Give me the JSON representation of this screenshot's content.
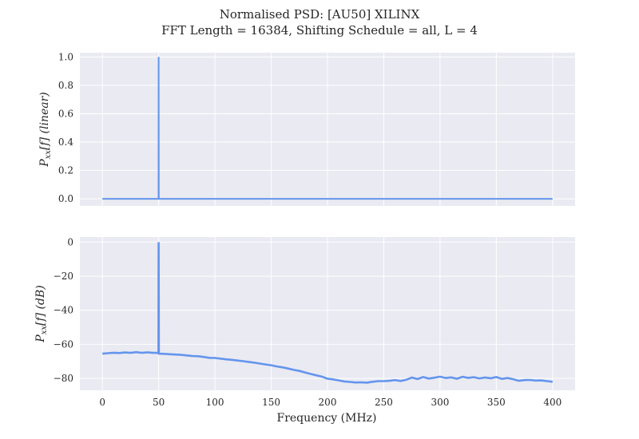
{
  "title_line1": "Normalised PSD: [AU50] XILINX",
  "title_line2": "FFT Length = 16384, Shifting Schedule = all, L = 4",
  "chart_data": [
    {
      "type": "line",
      "panel": "top",
      "ylabel": "P_xx[f] (linear)",
      "ylabel_main": "P",
      "ylabel_sub": "xx",
      "ylabel_rest": "[f] (linear)",
      "xlim": [
        -20,
        420
      ],
      "ylim": [
        -0.05,
        1.03
      ],
      "xticks": [
        0,
        50,
        100,
        150,
        200,
        250,
        300,
        350,
        400
      ],
      "yticks": [
        0.0,
        0.2,
        0.4,
        0.6,
        0.8,
        1.0
      ],
      "ytick_labels": [
        "0.0",
        "0.2",
        "0.4",
        "0.6",
        "0.8",
        "1.0"
      ],
      "series": [
        {
          "color": "#6495ed",
          "x": [
            0,
            49.8,
            49.9,
            50.0,
            50.1,
            50.2,
            400
          ],
          "y": [
            0.0,
            0.0,
            0.0,
            1.0,
            0.0,
            0.0,
            0.0
          ]
        }
      ]
    },
    {
      "type": "line",
      "panel": "bottom",
      "ylabel": "P_xx[f] (dB)",
      "ylabel_main": "P",
      "ylabel_sub": "xx",
      "ylabel_rest": "[f] (dB)",
      "xlabel": "Frequency (MHz)",
      "xlim": [
        -20,
        420
      ],
      "ylim": [
        -87,
        3
      ],
      "xticks": [
        0,
        50,
        100,
        150,
        200,
        250,
        300,
        350,
        400
      ],
      "xtick_labels": [
        "0",
        "50",
        "100",
        "150",
        "200",
        "250",
        "300",
        "350",
        "400"
      ],
      "yticks": [
        0,
        -20,
        -40,
        -60,
        -80
      ],
      "ytick_labels": [
        "0",
        "−20",
        "−40",
        "−60",
        "−80"
      ],
      "series": [
        {
          "color": "#6495ed",
          "x": [
            0,
            5,
            10,
            15,
            20,
            25,
            30,
            35,
            40,
            45,
            49.8,
            50.0,
            50.2,
            55,
            60,
            65,
            70,
            75,
            80,
            85,
            90,
            95,
            100,
            105,
            110,
            115,
            120,
            125,
            130,
            135,
            140,
            145,
            150,
            155,
            160,
            165,
            170,
            175,
            180,
            185,
            190,
            195,
            200,
            205,
            210,
            215,
            220,
            225,
            230,
            235,
            240,
            245,
            250,
            255,
            260,
            265,
            270,
            275,
            280,
            285,
            290,
            295,
            300,
            305,
            310,
            315,
            320,
            325,
            330,
            335,
            340,
            345,
            350,
            355,
            360,
            365,
            370,
            375,
            380,
            385,
            390,
            395,
            400
          ],
          "y": [
            -65.5,
            -65.2,
            -64.9,
            -65.1,
            -64.8,
            -65.0,
            -64.6,
            -65.0,
            -64.7,
            -65.0,
            -65.0,
            0.0,
            -65.5,
            -65.6,
            -65.8,
            -66.0,
            -66.2,
            -66.5,
            -66.9,
            -67.0,
            -67.4,
            -67.9,
            -68.0,
            -68.4,
            -68.8,
            -69.1,
            -69.5,
            -69.9,
            -70.3,
            -70.8,
            -71.3,
            -71.8,
            -72.3,
            -73.0,
            -73.5,
            -74.2,
            -75.0,
            -75.6,
            -76.5,
            -77.4,
            -78.2,
            -79.0,
            -80.2,
            -80.6,
            -81.2,
            -81.8,
            -82.1,
            -82.4,
            -82.3,
            -82.5,
            -82.0,
            -81.6,
            -81.6,
            -81.4,
            -81.0,
            -81.5,
            -80.8,
            -79.5,
            -80.4,
            -79.2,
            -80.1,
            -79.6,
            -79.0,
            -79.8,
            -79.4,
            -80.2,
            -79.1,
            -79.7,
            -79.3,
            -80.0,
            -79.5,
            -79.9,
            -79.2,
            -80.3,
            -79.8,
            -80.5,
            -81.4,
            -81.0,
            -80.9,
            -81.3,
            -81.2,
            -81.6,
            -82.0
          ]
        }
      ]
    }
  ]
}
